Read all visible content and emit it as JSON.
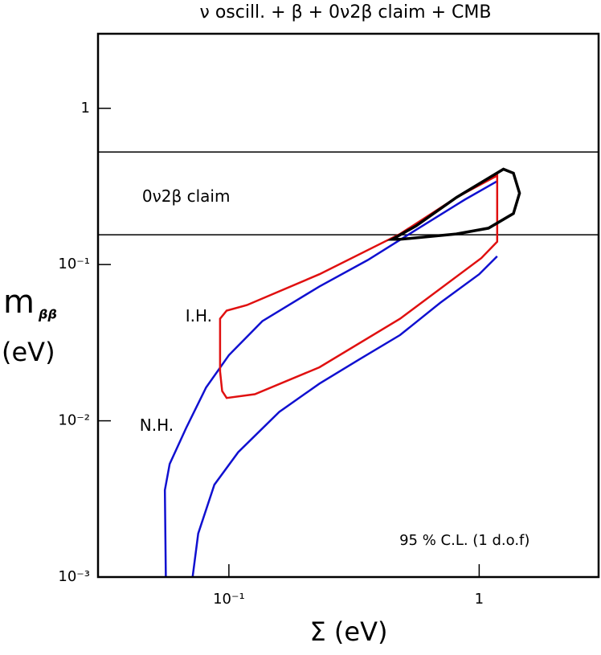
{
  "chart_data": {
    "type": "line",
    "title": "ν oscill. +  β +  0ν2β  claim + CMB",
    "x_label": "Σ (eV)",
    "y_label": "m",
    "y_label_subscript": "ββ",
    "y_label_unit": "(eV)",
    "log_x": true,
    "log_y": true,
    "xlim": [
      0.03,
      3
    ],
    "ylim": [
      0.001,
      3
    ],
    "xticks": [
      {
        "value": 0.1,
        "label": "10⁻¹"
      },
      1
    ],
    "yticks": [
      {
        "value": 0.001,
        "label": "10⁻³"
      },
      {
        "value": 0.01,
        "label": "10⁻²"
      },
      {
        "value": 0.1,
        "label": "10⁻¹"
      },
      1
    ],
    "hlines": [
      0.525,
      0.155
    ],
    "series": [
      {
        "color": "#1010d0",
        "x": [
          0.056,
          0.0555,
          0.058,
          0.0675,
          0.081,
          0.1,
          0.136,
          0.23,
          0.359,
          0.56,
          0.875,
          1.18
        ],
        "values": [
          0.001,
          0.0036,
          0.0053,
          0.009,
          0.0163,
          0.0263,
          0.0434,
          0.0724,
          0.107,
          0.167,
          0.26,
          0.342
        ]
      },
      {
        "color": "#1010d0",
        "x": [
          0.0716,
          0.0754,
          0.0875,
          0.109,
          0.159,
          0.23,
          0.333,
          0.483,
          0.7,
          1.0,
          1.18
        ],
        "values": [
          0.001,
          0.0019,
          0.0039,
          0.0063,
          0.0114,
          0.0173,
          0.0248,
          0.0354,
          0.057,
          0.0867,
          0.113
        ]
      },
      {
        "color": "#e01010",
        "closed": true,
        "x": [
          0.0922,
          0.098,
          0.118,
          0.23,
          0.483,
          0.812,
          1.18,
          1.18,
          1.02,
          0.483,
          0.23,
          0.127,
          0.098,
          0.094,
          0.0922
        ],
        "values": [
          0.045,
          0.0507,
          0.055,
          0.0867,
          0.157,
          0.269,
          0.371,
          0.14,
          0.11,
          0.045,
          0.022,
          0.0148,
          0.014,
          0.0155,
          0.0207
        ]
      },
      {
        "color": "#000000",
        "closed": true,
        "x": [
          0.449,
          0.56,
          0.812,
          1.25,
          1.37,
          1.45,
          1.37,
          1.09,
          0.81,
          0.483
        ],
        "values": [
          0.145,
          0.177,
          0.269,
          0.408,
          0.385,
          0.286,
          0.212,
          0.171,
          0.157,
          0.145
        ]
      }
    ],
    "annotations": [
      {
        "text": "0ν2β  claim",
        "x": 0.045,
        "y": 0.27
      },
      {
        "text": "I.H.",
        "x": 0.067,
        "y": 0.046
      },
      {
        "text": "N.H.",
        "x": 0.044,
        "y": 0.0092
      },
      {
        "text": "95 % C.L. (1 d.o.f)",
        "x": 0.48,
        "y": 0.0017
      }
    ]
  }
}
